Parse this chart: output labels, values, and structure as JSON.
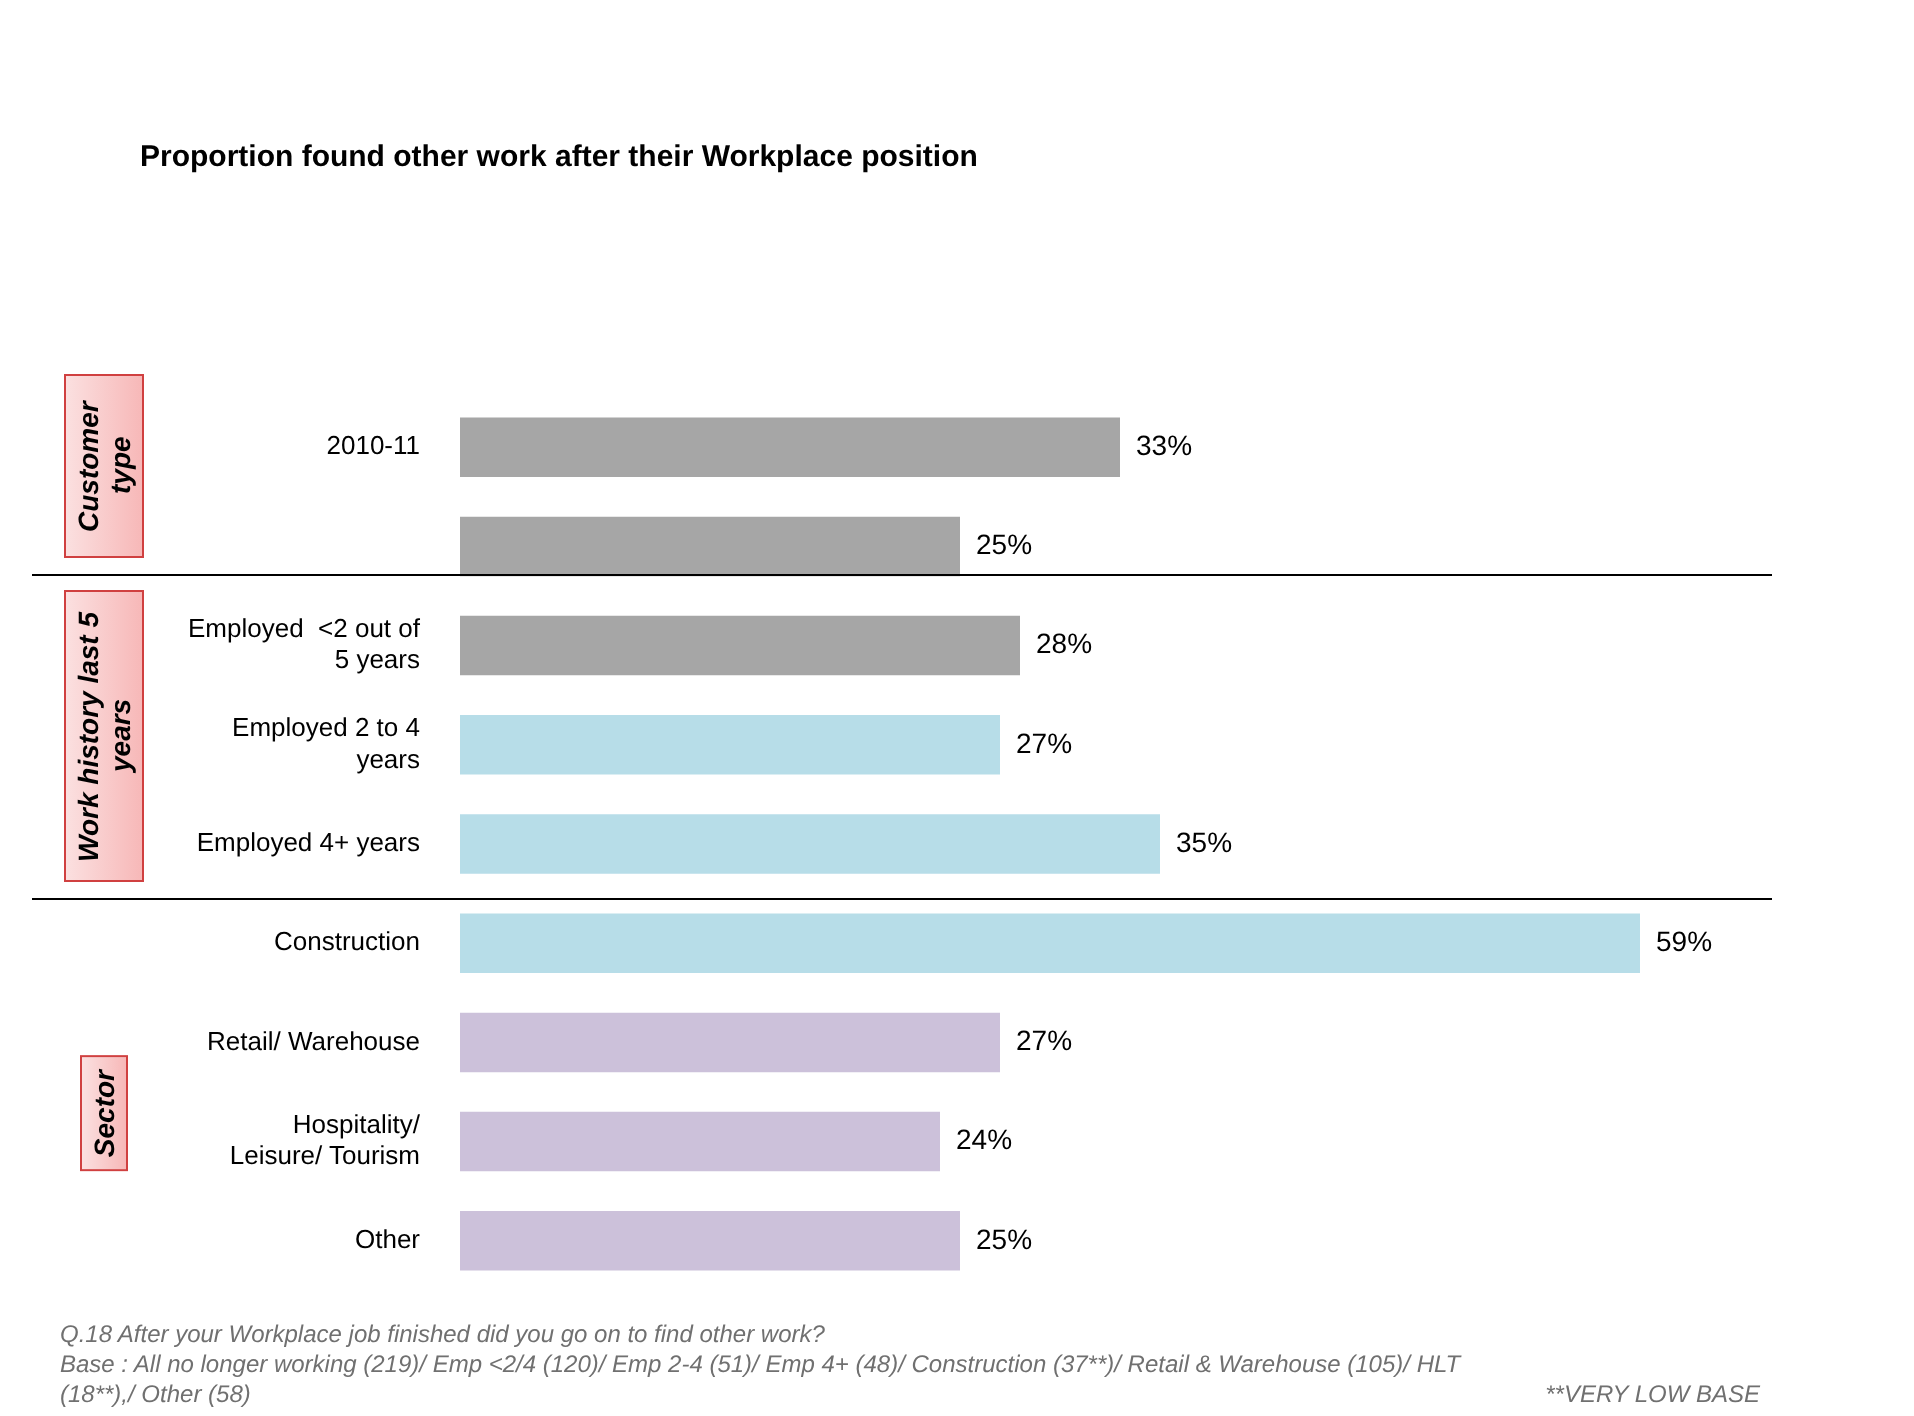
{
  "chart_data": {
    "type": "bar",
    "orientation": "horizontal",
    "title": "Proportion found other work after their Workplace position",
    "categories": [
      "2010-11",
      null,
      "Employed  <2 out of 5 years",
      "Employed 2 to 4 years",
      "Employed 4+ years",
      "Construction",
      "Retail/ Warehouse",
      "Hospitality/ Leisure/ Tourism",
      "Other"
    ],
    "values": [
      33,
      25,
      28,
      27,
      35,
      59,
      27,
      24,
      25
    ],
    "value_labels": [
      "33%",
      "25%",
      "28%",
      "27%",
      "35%",
      "59%",
      "27%",
      "24%",
      "25%"
    ],
    "colors": [
      "#a6a6a6",
      "#a6a6a6",
      "#a6a6a6",
      "#b7dde8",
      "#b7dde8",
      "#b7dde8",
      "#ccc1da",
      "#ccc1da",
      "#ccc1da"
    ],
    "tick_labels": "y",
    "legend": false,
    "annotations": [
      "Customer type",
      "Work history last 5 years",
      "Sector",
      "Q.18 After your Workplace job finished did you go on to find other work?",
      "Base : All no longer working (219)/ Emp <2/4 (120)/ Emp 2-4 (51)/ Emp 4+ (48)/ Construction (37**)/ Retail & Warehouse (105)/ HLT (18**),/ Other (58)",
      "**VERY LOW BASE"
    ]
  }
}
